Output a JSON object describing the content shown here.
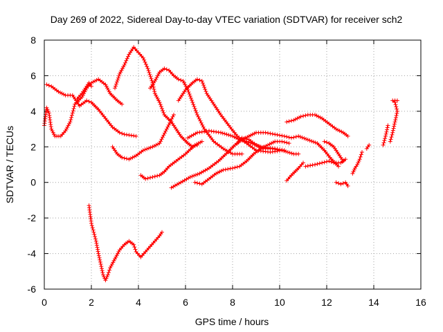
{
  "chart_data": {
    "type": "scatter",
    "title": "Day 269 of 2022, Sidereal Day-to-day VTEC variation (SDTVAR) for receiver sch2",
    "xlabel": "GPS time / hours",
    "ylabel": "SDTVAR / TECUs",
    "xlim": [
      0,
      16
    ],
    "ylim": [
      -6,
      8
    ],
    "x_ticks": [
      "0",
      "2",
      "4",
      "6",
      "8",
      "10",
      "12",
      "14",
      "16"
    ],
    "y_ticks": [
      "-6",
      "-4",
      "-2",
      "0",
      "2",
      "4",
      "6",
      "8"
    ],
    "grid": true,
    "legend": "none",
    "marker": "+",
    "color": "#ff0000",
    "series": [
      {
        "points": [
          [
            0.0,
            3.2
          ],
          [
            0.1,
            4.2
          ],
          [
            0.2,
            3.9
          ],
          [
            0.3,
            3.0
          ],
          [
            0.45,
            2.6
          ],
          [
            0.7,
            2.6
          ],
          [
            0.9,
            2.9
          ],
          [
            1.1,
            3.4
          ],
          [
            1.3,
            4.4
          ],
          [
            1.6,
            4.8
          ],
          [
            1.8,
            5.3
          ],
          [
            2.0,
            5.6
          ],
          [
            2.3,
            5.8
          ],
          [
            2.6,
            5.5
          ],
          [
            2.8,
            5.0
          ],
          [
            3.1,
            4.6
          ],
          [
            3.3,
            4.4
          ]
        ]
      },
      {
        "points": [
          [
            0.1,
            5.5
          ],
          [
            0.3,
            5.4
          ],
          [
            0.6,
            5.1
          ],
          [
            0.9,
            4.9
          ],
          [
            1.2,
            4.9
          ],
          [
            1.5,
            4.3
          ],
          [
            1.8,
            4.6
          ],
          [
            2.0,
            4.5
          ],
          [
            2.3,
            4.1
          ],
          [
            2.6,
            3.6
          ],
          [
            2.9,
            3.1
          ],
          [
            3.2,
            2.8
          ],
          [
            3.4,
            2.7
          ],
          [
            3.9,
            2.6
          ]
        ]
      },
      {
        "points": [
          [
            1.4,
            4.7
          ],
          [
            1.6,
            5.0
          ],
          [
            1.75,
            5.3
          ],
          [
            1.9,
            5.6
          ],
          [
            2.0,
            5.4
          ]
        ]
      },
      {
        "points": [
          [
            2.9,
            2.0
          ],
          [
            3.1,
            1.6
          ],
          [
            3.3,
            1.4
          ],
          [
            3.6,
            1.3
          ],
          [
            3.9,
            1.5
          ],
          [
            4.2,
            1.8
          ],
          [
            4.6,
            2.0
          ],
          [
            4.9,
            2.2
          ],
          [
            5.2,
            3.0
          ],
          [
            5.5,
            3.8
          ]
        ]
      },
      {
        "points": [
          [
            3.0,
            5.3
          ],
          [
            3.2,
            6.1
          ],
          [
            3.4,
            6.6
          ],
          [
            3.6,
            7.2
          ],
          [
            3.8,
            7.6
          ],
          [
            4.0,
            7.3
          ],
          [
            4.2,
            7.0
          ],
          [
            4.4,
            6.4
          ],
          [
            4.6,
            5.6
          ],
          [
            4.7,
            5.0
          ],
          [
            4.9,
            4.5
          ],
          [
            5.1,
            3.8
          ],
          [
            5.4,
            3.4
          ],
          [
            5.8,
            2.6
          ],
          [
            6.1,
            2.2
          ],
          [
            6.3,
            2.0
          ],
          [
            6.5,
            2.1
          ]
        ]
      },
      {
        "points": [
          [
            4.5,
            5.3
          ],
          [
            4.7,
            5.7
          ],
          [
            4.9,
            6.2
          ],
          [
            5.1,
            6.4
          ],
          [
            5.3,
            6.3
          ],
          [
            5.5,
            6.0
          ],
          [
            5.7,
            5.8
          ],
          [
            5.9,
            5.7
          ],
          [
            6.1,
            5.2
          ],
          [
            6.3,
            4.5
          ],
          [
            6.5,
            3.8
          ],
          [
            6.8,
            3.0
          ],
          [
            7.2,
            2.3
          ],
          [
            7.6,
            1.9
          ],
          [
            8.0,
            1.6
          ],
          [
            8.4,
            1.6
          ]
        ]
      },
      {
        "points": [
          [
            5.7,
            4.6
          ],
          [
            6.0,
            5.2
          ],
          [
            6.3,
            5.6
          ],
          [
            6.5,
            5.8
          ],
          [
            6.7,
            5.7
          ],
          [
            6.9,
            5.0
          ],
          [
            7.2,
            4.4
          ],
          [
            7.5,
            3.8
          ],
          [
            7.9,
            3.1
          ],
          [
            8.2,
            2.6
          ],
          [
            8.6,
            2.2
          ],
          [
            9.0,
            1.8
          ],
          [
            9.6,
            1.7
          ],
          [
            10.1,
            1.8
          ],
          [
            10.6,
            1.6
          ],
          [
            10.8,
            1.6
          ]
        ]
      },
      {
        "points": [
          [
            6.1,
            2.5
          ],
          [
            6.5,
            2.8
          ],
          [
            7.0,
            2.9
          ],
          [
            7.5,
            2.8
          ],
          [
            8.0,
            2.6
          ],
          [
            8.3,
            2.4
          ],
          [
            8.6,
            2.3
          ],
          [
            9.2,
            2.0
          ],
          [
            9.8,
            1.9
          ],
          [
            10.2,
            1.8
          ]
        ]
      },
      {
        "points": [
          [
            4.1,
            0.4
          ],
          [
            4.3,
            0.2
          ],
          [
            4.6,
            0.3
          ],
          [
            4.9,
            0.4
          ],
          [
            5.1,
            0.6
          ],
          [
            5.3,
            0.9
          ],
          [
            5.6,
            1.2
          ],
          [
            6.0,
            1.6
          ],
          [
            6.4,
            2.1
          ],
          [
            6.7,
            2.3
          ]
        ]
      },
      {
        "points": [
          [
            5.4,
            -0.3
          ],
          [
            5.8,
            0.0
          ],
          [
            6.2,
            0.3
          ],
          [
            6.6,
            0.5
          ],
          [
            7.0,
            0.8
          ],
          [
            7.4,
            1.2
          ],
          [
            7.8,
            1.7
          ],
          [
            8.1,
            2.1
          ],
          [
            8.4,
            2.4
          ],
          [
            8.7,
            2.6
          ],
          [
            9.0,
            2.8
          ],
          [
            9.4,
            2.8
          ],
          [
            9.8,
            2.7
          ],
          [
            10.2,
            2.6
          ],
          [
            10.5,
            2.5
          ],
          [
            10.8,
            2.6
          ],
          [
            11.2,
            2.4
          ],
          [
            11.6,
            2.2
          ],
          [
            11.9,
            1.8
          ],
          [
            12.2,
            1.3
          ],
          [
            12.5,
            0.9
          ]
        ]
      },
      {
        "points": [
          [
            6.4,
            0.0
          ],
          [
            6.7,
            -0.1
          ],
          [
            7.0,
            0.2
          ],
          [
            7.3,
            0.5
          ],
          [
            7.6,
            0.7
          ],
          [
            8.0,
            0.8
          ],
          [
            8.3,
            0.9
          ],
          [
            8.6,
            1.2
          ],
          [
            8.9,
            1.6
          ],
          [
            9.2,
            1.9
          ],
          [
            9.5,
            2.1
          ],
          [
            9.8,
            2.3
          ],
          [
            10.1,
            2.3
          ],
          [
            10.4,
            2.2
          ]
        ]
      },
      {
        "points": [
          [
            8.2,
            2.2
          ],
          [
            8.4,
            2.5
          ],
          [
            8.7,
            2.4
          ],
          [
            9.0,
            2.1
          ],
          [
            9.3,
            1.9
          ],
          [
            9.7,
            1.9
          ],
          [
            10.0,
            1.8
          ]
        ]
      },
      {
        "points": [
          [
            10.3,
            3.4
          ],
          [
            10.6,
            3.5
          ],
          [
            10.9,
            3.7
          ],
          [
            11.2,
            3.8
          ],
          [
            11.5,
            3.8
          ],
          [
            11.8,
            3.6
          ],
          [
            12.1,
            3.3
          ],
          [
            12.4,
            3.0
          ],
          [
            12.7,
            2.8
          ],
          [
            12.9,
            2.6
          ]
        ]
      },
      {
        "points": [
          [
            10.3,
            0.1
          ],
          [
            10.5,
            0.4
          ],
          [
            10.8,
            0.8
          ],
          [
            11.0,
            1.1
          ]
        ]
      },
      {
        "points": [
          [
            11.1,
            0.9
          ],
          [
            11.5,
            1.0
          ],
          [
            11.8,
            1.1
          ],
          [
            12.1,
            1.2
          ],
          [
            12.3,
            1.1
          ],
          [
            12.6,
            1.1
          ],
          [
            12.8,
            1.3
          ]
        ]
      },
      {
        "points": [
          [
            11.9,
            2.3
          ],
          [
            12.1,
            2.2
          ],
          [
            12.3,
            2.0
          ],
          [
            12.5,
            1.6
          ],
          [
            12.7,
            1.2
          ]
        ]
      },
      {
        "points": [
          [
            12.4,
            0.0
          ],
          [
            12.6,
            -0.1
          ],
          [
            12.8,
            0.0
          ],
          [
            12.9,
            -0.2
          ]
        ]
      },
      {
        "points": [
          [
            13.1,
            0.5
          ],
          [
            13.2,
            0.8
          ],
          [
            13.3,
            1.0
          ],
          [
            13.4,
            1.3
          ],
          [
            13.5,
            1.7
          ]
        ]
      },
      {
        "points": [
          [
            13.7,
            1.9
          ],
          [
            13.8,
            2.1
          ]
        ]
      },
      {
        "points": [
          [
            14.4,
            2.1
          ],
          [
            14.5,
            2.6
          ],
          [
            14.6,
            3.2
          ]
        ]
      },
      {
        "points": [
          [
            14.7,
            2.3
          ],
          [
            14.8,
            2.8
          ],
          [
            14.9,
            3.4
          ],
          [
            15.0,
            4.0
          ],
          [
            14.9,
            4.5
          ],
          [
            14.8,
            4.6
          ],
          [
            15.0,
            4.6
          ]
        ]
      },
      {
        "points": [
          [
            1.9,
            -1.3
          ],
          [
            2.0,
            -2.3
          ],
          [
            2.1,
            -2.8
          ],
          [
            2.2,
            -3.3
          ],
          [
            2.3,
            -4.0
          ],
          [
            2.4,
            -4.6
          ],
          [
            2.5,
            -5.2
          ],
          [
            2.6,
            -5.5
          ],
          [
            2.7,
            -5.2
          ],
          [
            2.8,
            -4.8
          ],
          [
            3.0,
            -4.3
          ],
          [
            3.2,
            -3.8
          ],
          [
            3.4,
            -3.5
          ],
          [
            3.6,
            -3.3
          ],
          [
            3.8,
            -3.5
          ],
          [
            3.9,
            -3.9
          ],
          [
            4.1,
            -4.2
          ],
          [
            4.3,
            -3.9
          ],
          [
            4.5,
            -3.6
          ],
          [
            4.7,
            -3.3
          ],
          [
            4.9,
            -3.0
          ],
          [
            5.0,
            -2.8
          ]
        ]
      }
    ]
  }
}
